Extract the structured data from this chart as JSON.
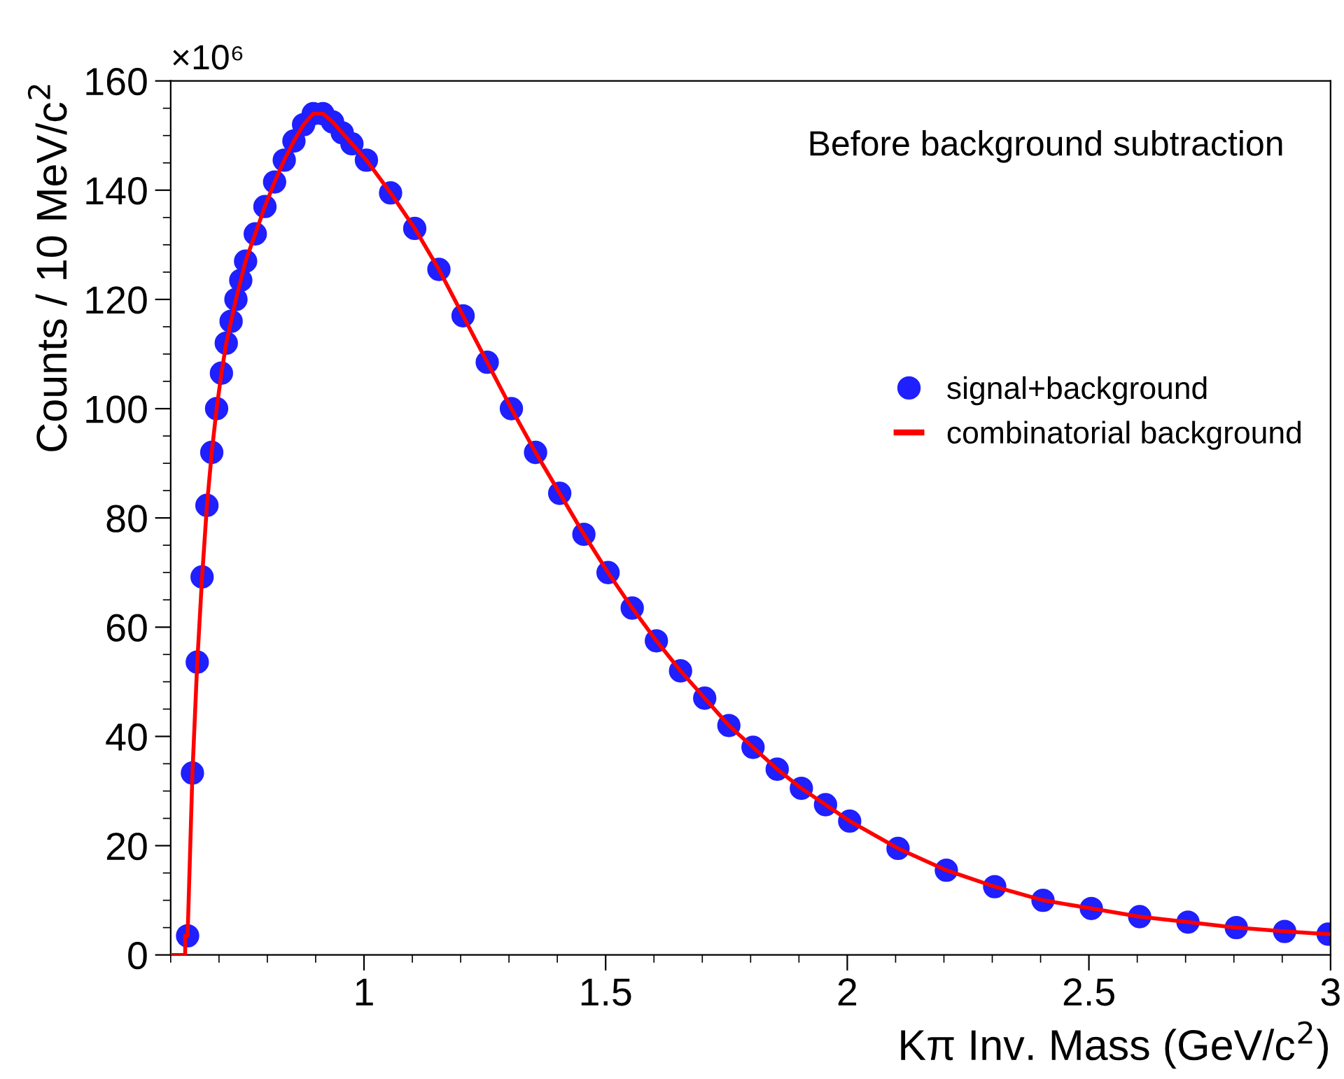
{
  "chart_data": {
    "type": "scatter",
    "xlabel": "Kπ Inv. Mass (GeV/c$^{2}$)",
    "ylabel": "Counts / 10 MeV/c$^{2}$",
    "annotations": [
      "×10⁶",
      "Before background subtraction"
    ],
    "xlim": [
      0.6,
      3.0
    ],
    "xticks": [
      1,
      1.5,
      2,
      2.5,
      3
    ],
    "ylim": [
      0,
      160
    ],
    "yticks": [
      0,
      20,
      40,
      60,
      80,
      100,
      120,
      140,
      160
    ],
    "grid": false,
    "legend": "right",
    "marker": "circle",
    "series": [
      {
        "name": "signal+background",
        "color": "#1f1fff",
        "x": [
          0.635,
          0.645,
          0.655,
          0.665,
          0.675,
          0.685,
          0.695,
          0.705,
          0.715,
          0.725,
          0.735,
          0.745,
          0.755,
          0.775,
          0.795,
          0.815,
          0.835,
          0.855,
          0.875,
          0.895,
          0.915,
          0.935,
          0.955,
          0.975,
          1.005,
          1.055,
          1.105,
          1.155,
          1.205,
          1.255,
          1.305,
          1.355,
          1.405,
          1.455,
          1.505,
          1.555,
          1.605,
          1.655,
          1.705,
          1.755,
          1.805,
          1.855,
          1.905,
          1.955,
          2.005,
          2.105,
          2.205,
          2.305,
          2.405,
          2.505,
          2.605,
          2.705,
          2.805,
          2.905,
          2.995
        ],
        "values": [
          3.5,
          33.3,
          53.6,
          69.2,
          82.3,
          92,
          100,
          106.5,
          112,
          116,
          120,
          123.5,
          127,
          132,
          137,
          141.5,
          145.5,
          149,
          152,
          154,
          154,
          152.5,
          150.5,
          148.5,
          145.5,
          139.5,
          133,
          125.5,
          117,
          108.5,
          100,
          92,
          84.5,
          77,
          70,
          63.5,
          57.5,
          52,
          47,
          42,
          38,
          34,
          30.5,
          27.5,
          24.5,
          19.5,
          15.5,
          12.5,
          10,
          8.5,
          7,
          6,
          5,
          4.3,
          3.8
        ]
      },
      {
        "name": "combinatorial background",
        "type": "line",
        "color": "#ff0000",
        "marker": "none",
        "x": [
          0.6,
          0.63,
          0.63,
          0.635,
          0.645,
          0.655,
          0.665,
          0.675,
          0.685,
          0.695,
          0.705,
          0.715,
          0.725,
          0.735,
          0.745,
          0.755,
          0.775,
          0.795,
          0.815,
          0.835,
          0.855,
          0.875,
          0.895,
          0.915,
          0.935,
          0.955,
          0.975,
          1.005,
          1.055,
          1.105,
          1.155,
          1.205,
          1.255,
          1.305,
          1.355,
          1.405,
          1.455,
          1.505,
          1.555,
          1.605,
          1.655,
          1.705,
          1.755,
          1.805,
          1.855,
          1.905,
          1.955,
          2.005,
          2.105,
          2.205,
          2.305,
          2.405,
          2.505,
          2.605,
          2.705,
          2.805,
          2.905,
          2.995
        ],
        "values": [
          0,
          0,
          3.5,
          3.5,
          33.3,
          53.6,
          69.2,
          82.3,
          92,
          100,
          106.5,
          112,
          116,
          120,
          123.5,
          127,
          132,
          137,
          141.5,
          145.5,
          149,
          152,
          154,
          154,
          152.5,
          150.5,
          148.5,
          145.5,
          139.5,
          133,
          125.5,
          117,
          108.5,
          100,
          92,
          84.5,
          77,
          70,
          63.5,
          57.5,
          52,
          47,
          42,
          38,
          34,
          30.5,
          27.5,
          24.5,
          19.5,
          15.5,
          12.5,
          10,
          8.5,
          7,
          6,
          5,
          4.3,
          3.8
        ]
      }
    ]
  }
}
